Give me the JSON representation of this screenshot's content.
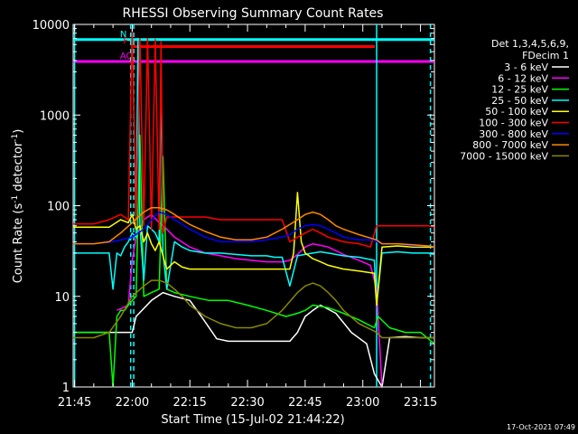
{
  "chart_data": {
    "type": "line",
    "title": "RHESSI Observing Summary Count Rates",
    "xlabel": "Start Time (15-Jul-02 21:44:22)",
    "ylabel_main": "Count Rate (s",
    "ylabel_sup1": "-1",
    "ylabel_mid": " detector",
    "ylabel_sup2": "-1",
    "ylabel_end": ")",
    "y_scale": "log",
    "ylim": [
      1,
      10000
    ],
    "x_range_min": [
      -0.37,
      93.63
    ],
    "x_ticks": [
      {
        "min": 0,
        "label": "21:45"
      },
      {
        "min": 15,
        "label": "22:00"
      },
      {
        "min": 30,
        "label": "22:15"
      },
      {
        "min": 45,
        "label": "22:30"
      },
      {
        "min": 60,
        "label": "22:45"
      },
      {
        "min": 75,
        "label": "23:00"
      },
      {
        "min": 90,
        "label": "23:15"
      }
    ],
    "y_ticks": [
      {
        "value": 1,
        "label": "1"
      },
      {
        "value": 10,
        "label": "10"
      },
      {
        "value": 100,
        "label": "100"
      },
      {
        "value": 1000,
        "label": "1000"
      },
      {
        "value": 10000,
        "label": "10000"
      }
    ],
    "legend_header": [
      "Det 1,3,4,5,6,9,",
      "FDecim 1"
    ],
    "legend_position": "right",
    "timestamp": "17-Oct-2021 07:49",
    "flag_lines": [
      {
        "label": "N",
        "color": "#00ffff",
        "x_start": -0.4,
        "x_end": 93.6,
        "value": 6800
      },
      {
        "label": "F",
        "color": "#ff0000",
        "x_start": 15.4,
        "x_end": 78.1,
        "value": 5700
      },
      {
        "label": "AO",
        "color": "#ff00ff",
        "x_start": -0.4,
        "x_end": 93.6,
        "value": 3900
      }
    ],
    "vertical_markers": [
      {
        "x": 0.0,
        "color": "#00ffff",
        "style": "solid"
      },
      {
        "x": 14.6,
        "color": "#00ffff",
        "style": "dashed"
      },
      {
        "x": 15.4,
        "color": "#00ffff",
        "style": "dashed"
      },
      {
        "x": 78.6,
        "color": "#00ffff",
        "style": "solid"
      },
      {
        "x": 92.6,
        "color": "#00ffff",
        "style": "dashed"
      }
    ],
    "series": [
      {
        "name": "3 - 6 keV",
        "color": "#ffffff",
        "x": [
          -0.4,
          12,
          15,
          16,
          20,
          23,
          26,
          30,
          33,
          37,
          40,
          44,
          48,
          52,
          56,
          58,
          60,
          62,
          64,
          68,
          72,
          76,
          78,
          80,
          82,
          86,
          90,
          93.6
        ],
        "y": [
          4,
          4,
          4,
          6,
          9,
          11,
          10,
          9,
          6,
          3.4,
          3.2,
          3.2,
          3.2,
          3.2,
          3.2,
          4,
          6,
          7,
          8,
          6.5,
          4,
          3,
          1.4,
          1,
          3.5,
          3.6,
          3.5,
          3.5
        ]
      },
      {
        "name": "6 - 12 keV",
        "color": "#ff00ff",
        "x": [
          11,
          14,
          15,
          16,
          18,
          20,
          22,
          24,
          26,
          30,
          34,
          38,
          42,
          46,
          50,
          54,
          56,
          58,
          60,
          62,
          66,
          70,
          74,
          77,
          78.6,
          80
        ],
        "y": [
          7,
          8,
          25,
          45,
          70,
          80,
          65,
          55,
          45,
          35,
          30,
          28,
          26,
          25,
          24,
          24,
          25,
          29,
          35,
          38,
          35,
          29,
          25,
          22,
          12,
          1
        ]
      },
      {
        "name": "12 - 25 keV",
        "color": "#00ff00",
        "x": [
          -0.4,
          9,
          10,
          11,
          12,
          13,
          14,
          15,
          16,
          17,
          18,
          20,
          22,
          23,
          24,
          26,
          30,
          35,
          40,
          45,
          50,
          55,
          58,
          60,
          62,
          66,
          70,
          74,
          78,
          79,
          82,
          86,
          90,
          93.6
        ],
        "y": [
          4,
          4,
          1,
          6,
          7,
          7,
          8,
          9,
          10,
          600,
          10,
          11,
          12,
          350,
          12,
          11,
          10,
          9,
          9,
          8,
          7,
          6,
          6.5,
          7,
          8,
          7.5,
          6.5,
          5.5,
          4.5,
          6,
          4.5,
          4,
          4,
          3
        ]
      },
      {
        "name": "25 - 50 keV",
        "color": "#00ffff",
        "x": [
          -0.4,
          5,
          9,
          10,
          11,
          12,
          13,
          14,
          15,
          16,
          16.5,
          17,
          18,
          19,
          20,
          21,
          22,
          22.5,
          23,
          24,
          26,
          28,
          30,
          34,
          38,
          42,
          46,
          50,
          52,
          54,
          56,
          58,
          60,
          62,
          64,
          66,
          70,
          74,
          78,
          78.6,
          80,
          84,
          88,
          92,
          93.6
        ],
        "y": [
          30,
          30,
          30,
          12,
          30,
          28,
          35,
          40,
          50,
          45,
          7000,
          60,
          15,
          60,
          55,
          50,
          40,
          3000,
          30,
          12,
          40,
          35,
          32,
          30,
          30,
          29,
          28,
          28,
          27,
          27,
          13,
          28,
          29,
          30,
          31,
          30,
          28,
          27,
          25,
          8,
          30,
          31,
          30,
          30,
          29
        ]
      },
      {
        "name": "50 - 100 keV",
        "color": "#ffff00",
        "x": [
          -0.4,
          5,
          9,
          12,
          14,
          15,
          16,
          17,
          18,
          19,
          20,
          21,
          22,
          23,
          24,
          26,
          28,
          30,
          32,
          34,
          38,
          42,
          46,
          50,
          54,
          56,
          57,
          58,
          59,
          60,
          62,
          64,
          66,
          70,
          74,
          78,
          78.6,
          80,
          84,
          88,
          92,
          93.6
        ],
        "y": [
          58,
          58,
          58,
          70,
          65,
          80,
          55,
          60,
          40,
          50,
          38,
          32,
          40,
          28,
          20,
          24,
          21,
          20,
          20,
          20,
          20,
          20,
          20,
          20,
          20,
          20,
          30,
          140,
          40,
          30,
          26,
          24,
          22,
          20,
          19,
          18,
          8,
          35,
          36,
          35,
          35,
          35
        ]
      },
      {
        "name": "100 - 300 keV",
        "color": "#ff0000",
        "x": [
          -0.4,
          5,
          9,
          12,
          14,
          15,
          16,
          17,
          18,
          19,
          20,
          21,
          22,
          22.5,
          23,
          24,
          26,
          28,
          30,
          32,
          34,
          38,
          42,
          46,
          50,
          54,
          56,
          58,
          60,
          62,
          64,
          66,
          70,
          74,
          77,
          78.6,
          80,
          84,
          88,
          92,
          93.6
        ],
        "y": [
          63,
          63,
          70,
          80,
          70,
          9000,
          60,
          7000,
          60,
          7000,
          55,
          6800,
          55,
          6500,
          50,
          75,
          75,
          75,
          75,
          75,
          75,
          70,
          70,
          70,
          70,
          70,
          40,
          45,
          50,
          55,
          50,
          45,
          40,
          38,
          35,
          60,
          60,
          60,
          60,
          60,
          58
        ]
      },
      {
        "name": "300 - 800 keV",
        "color": "#0000ff",
        "x": [
          -0.4,
          5,
          10,
          15,
          18,
          20,
          22,
          24,
          26,
          28,
          30,
          34,
          38,
          42,
          46,
          50,
          54,
          56,
          58,
          60,
          62,
          64,
          66,
          68,
          70,
          74,
          78,
          78.6,
          80,
          84,
          88,
          92,
          93.6
        ],
        "y": [
          38,
          38,
          40,
          45,
          55,
          70,
          85,
          80,
          70,
          62,
          55,
          45,
          40,
          40,
          40,
          42,
          45,
          48,
          55,
          60,
          62,
          60,
          55,
          50,
          45,
          42,
          42,
          40,
          38,
          38,
          36,
          36,
          35
        ]
      },
      {
        "name": "800 - 7000 keV",
        "color": "#ff8800",
        "x": [
          -0.4,
          5,
          9,
          12,
          15,
          18,
          20,
          22,
          24,
          26,
          28,
          30,
          34,
          38,
          42,
          46,
          50,
          54,
          58,
          60,
          62,
          64,
          66,
          68,
          70,
          74,
          78.6,
          80,
          84,
          88,
          92,
          93.6
        ],
        "y": [
          38,
          38,
          40,
          50,
          65,
          85,
          95,
          95,
          90,
          80,
          70,
          62,
          52,
          45,
          42,
          42,
          45,
          55,
          70,
          80,
          85,
          80,
          70,
          60,
          55,
          48,
          42,
          38,
          38,
          37,
          36,
          35
        ]
      },
      {
        "name": "7000 - 15000 keV",
        "color": "#888800",
        "x": [
          -0.4,
          5,
          9,
          12,
          15,
          18,
          20,
          22,
          24,
          26,
          28,
          30,
          34,
          38,
          42,
          46,
          50,
          54,
          58,
          60,
          62,
          64,
          66,
          68,
          70,
          74,
          78.6,
          80,
          84,
          88,
          92,
          93.6
        ],
        "y": [
          3.5,
          3.5,
          4,
          6,
          10,
          13,
          15,
          15,
          14,
          12,
          10,
          8,
          6,
          5,
          4.5,
          4.5,
          5,
          7,
          11,
          13,
          14,
          13,
          11,
          9,
          7,
          5,
          4,
          3.5,
          3.5,
          3.5,
          3.5,
          3.5
        ]
      }
    ]
  }
}
